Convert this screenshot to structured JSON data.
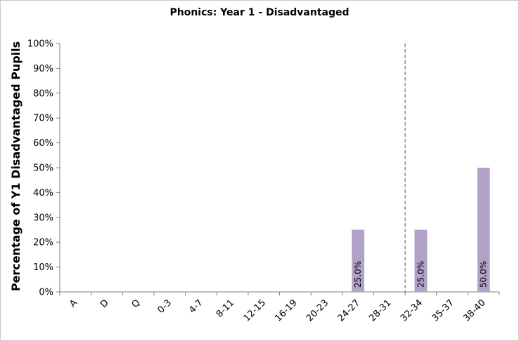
{
  "chart_data": {
    "type": "bar",
    "title": "Phonics: Year 1 - Disadvantaged",
    "xlabel": "",
    "ylabel": "Percentage of Y1 Disadvantaged Pupils",
    "categories": [
      "A",
      "D",
      "Q",
      "0-3",
      "4-7",
      "8-11",
      "12-15",
      "16-19",
      "20-23",
      "24-27",
      "28-31",
      "32-34",
      "35-37",
      "38-40"
    ],
    "values": [
      0,
      0,
      0,
      0,
      0,
      0,
      0,
      0,
      0,
      25.0,
      0,
      25.0,
      0,
      50.0
    ],
    "data_labels": [
      "",
      "",
      "",
      "",
      "",
      "",
      "",
      "",
      "",
      "25.0%",
      "",
      "25.0%",
      "",
      "50.0%"
    ],
    "ylim": [
      0,
      100
    ],
    "yticks": [
      "0%",
      "10%",
      "20%",
      "30%",
      "40%",
      "50%",
      "60%",
      "70%",
      "80%",
      "90%",
      "100%"
    ],
    "threshold_line_between": [
      "28-31",
      "32-34"
    ],
    "grid": false,
    "legend": "none",
    "colors": {
      "bar": "#b3a2c7",
      "threshold": "#7f7f7f",
      "axis": "#808080"
    }
  }
}
